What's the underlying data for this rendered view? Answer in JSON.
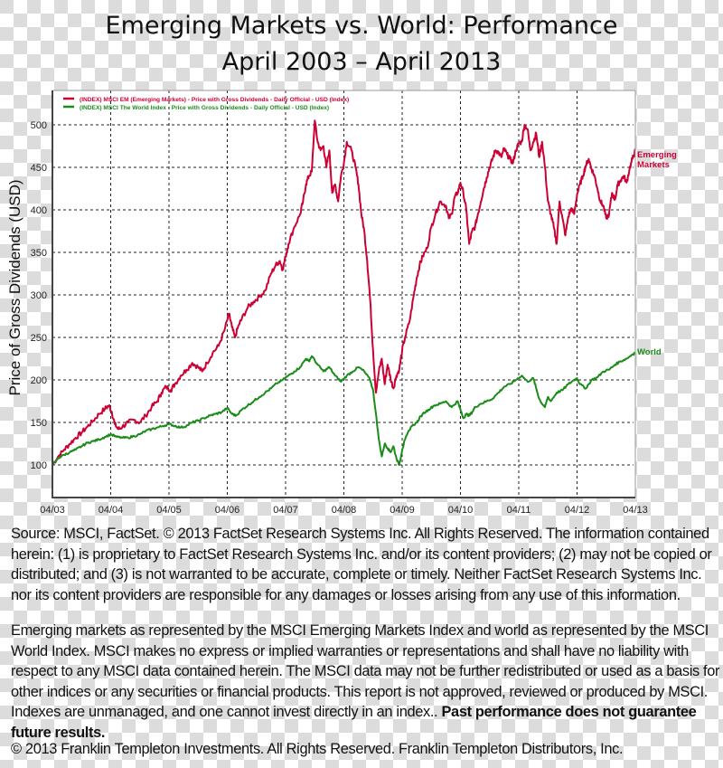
{
  "title_lines": [
    "Emerging Markets vs. World: Performance",
    "April 2003 – April 2013"
  ],
  "chart_data": {
    "type": "line",
    "title": "Emerging Markets vs. World: Performance April 2003 – April 2013",
    "xlabel": "",
    "ylabel": "Price of Gross Dividends (USD)",
    "xlim": [
      2003.25,
      2013.25
    ],
    "ylim": [
      60,
      540
    ],
    "x_ticks": [
      2003.25,
      2004.25,
      2005.25,
      2006.25,
      2007.25,
      2008.25,
      2009.25,
      2010.25,
      2011.25,
      2012.25,
      2013.25
    ],
    "x_tick_labels": [
      "04/03",
      "04/04",
      "04/05",
      "04/06",
      "04/07",
      "04/08",
      "04/09",
      "04/10",
      "04/11",
      "04/12",
      "04/13"
    ],
    "y_ticks": [
      100,
      150,
      200,
      250,
      300,
      350,
      400,
      450,
      500
    ],
    "y_tick_labels": [
      "100",
      "150",
      "200",
      "250",
      "300",
      "350",
      "400",
      "450",
      "500"
    ],
    "grid": true,
    "legend_position": "top-left",
    "series": [
      {
        "name": "(INDEX) MSCI EM (Emerging Markets) - Price with Gross Dividends - Daily Official - USD (Index)",
        "end_label": "Emerging Markets",
        "color": "#cc0033",
        "x": [
          2003.25,
          2003.35,
          2003.45,
          2003.55,
          2003.65,
          2003.75,
          2003.85,
          2003.95,
          2004.05,
          2004.15,
          2004.22,
          2004.27,
          2004.32,
          2004.38,
          2004.45,
          2004.55,
          2004.65,
          2004.75,
          2004.85,
          2004.95,
          2005.05,
          2005.12,
          2005.2,
          2005.28,
          2005.35,
          2005.45,
          2005.55,
          2005.65,
          2005.75,
          2005.82,
          2005.9,
          2006.0,
          2006.1,
          2006.2,
          2006.28,
          2006.33,
          2006.38,
          2006.45,
          2006.5,
          2006.6,
          2006.7,
          2006.8,
          2006.9,
          2007.0,
          2007.08,
          2007.15,
          2007.2,
          2007.25,
          2007.3,
          2007.4,
          2007.5,
          2007.55,
          2007.6,
          2007.65,
          2007.7,
          2007.75,
          2007.8,
          2007.85,
          2007.9,
          2007.95,
          2008.0,
          2008.05,
          2008.1,
          2008.15,
          2008.2,
          2008.25,
          2008.3,
          2008.38,
          2008.45,
          2008.5,
          2008.55,
          2008.6,
          2008.65,
          2008.7,
          2008.75,
          2008.8,
          2008.85,
          2008.9,
          2008.95,
          2009.0,
          2009.05,
          2009.1,
          2009.15,
          2009.2,
          2009.25,
          2009.3,
          2009.38,
          2009.45,
          2009.5,
          2009.55,
          2009.6,
          2009.68,
          2009.75,
          2009.82,
          2009.9,
          2010.0,
          2010.05,
          2010.1,
          2010.15,
          2010.2,
          2010.25,
          2010.3,
          2010.35,
          2010.4,
          2010.45,
          2010.5,
          2010.55,
          2010.6,
          2010.65,
          2010.7,
          2010.75,
          2010.8,
          2010.85,
          2010.9,
          2010.95,
          2011.0,
          2011.05,
          2011.1,
          2011.15,
          2011.2,
          2011.25,
          2011.3,
          2011.35,
          2011.4,
          2011.45,
          2011.5,
          2011.55,
          2011.6,
          2011.65,
          2011.7,
          2011.75,
          2011.8,
          2011.85,
          2011.9,
          2011.95,
          2012.0,
          2012.05,
          2012.1,
          2012.15,
          2012.2,
          2012.25,
          2012.3,
          2012.35,
          2012.4,
          2012.45,
          2012.5,
          2012.55,
          2012.6,
          2012.65,
          2012.7,
          2012.75,
          2012.8,
          2012.85,
          2012.9,
          2012.95,
          2013.0,
          2013.05,
          2013.1,
          2013.15,
          2013.2,
          2013.25
        ],
        "y": [
          100,
          110,
          118,
          125,
          132,
          138,
          145,
          152,
          160,
          166,
          170,
          162,
          148,
          142,
          145,
          150,
          153,
          150,
          158,
          168,
          175,
          185,
          192,
          188,
          195,
          205,
          212,
          220,
          215,
          210,
          220,
          232,
          240,
          258,
          278,
          262,
          250,
          265,
          272,
          285,
          292,
          298,
          305,
          325,
          335,
          340,
          330,
          345,
          360,
          380,
          395,
          410,
          430,
          440,
          445,
          505,
          480,
          470,
          475,
          450,
          470,
          420,
          430,
          410,
          440,
          455,
          480,
          470,
          450,
          430,
          395,
          375,
          340,
          295,
          235,
          185,
          210,
          225,
          195,
          218,
          202,
          190,
          205,
          212,
          235,
          250,
          270,
          300,
          320,
          335,
          345,
          355,
          380,
          395,
          410,
          405,
          390,
          395,
          415,
          420,
          432,
          420,
          400,
          360,
          375,
          380,
          395,
          410,
          425,
          438,
          450,
          460,
          470,
          468,
          462,
          472,
          465,
          460,
          455,
          470,
          478,
          480,
          500,
          495,
          470,
          480,
          490,
          462,
          480,
          450,
          410,
          395,
          380,
          360,
          410,
          390,
          370,
          392,
          402,
          395,
          418,
          430,
          440,
          452,
          460,
          448,
          440,
          425,
          410,
          405,
          390,
          395,
          420,
          412,
          430,
          435,
          440,
          432,
          448,
          460,
          470
        ]
      },
      {
        "name": "(INDEX) MSCI The World Index - Price with Gross Dividends - Daily Official - USD (Index)",
        "end_label": "World",
        "color": "#1a8c1a",
        "x": [
          2003.25,
          2003.35,
          2003.45,
          2003.55,
          2003.65,
          2003.75,
          2003.85,
          2003.95,
          2004.05,
          2004.15,
          2004.25,
          2004.35,
          2004.45,
          2004.55,
          2004.65,
          2004.75,
          2004.85,
          2004.95,
          2005.05,
          2005.15,
          2005.25,
          2005.35,
          2005.45,
          2005.55,
          2005.65,
          2005.75,
          2005.85,
          2005.95,
          2006.05,
          2006.15,
          2006.25,
          2006.33,
          2006.4,
          2006.5,
          2006.6,
          2006.7,
          2006.8,
          2006.9,
          2007.0,
          2007.1,
          2007.2,
          2007.3,
          2007.4,
          2007.5,
          2007.6,
          2007.65,
          2007.7,
          2007.8,
          2007.9,
          2008.0,
          2008.1,
          2008.2,
          2008.3,
          2008.4,
          2008.5,
          2008.6,
          2008.7,
          2008.75,
          2008.8,
          2008.85,
          2008.9,
          2008.95,
          2009.0,
          2009.05,
          2009.1,
          2009.15,
          2009.2,
          2009.25,
          2009.3,
          2009.4,
          2009.5,
          2009.6,
          2009.7,
          2009.8,
          2009.9,
          2010.0,
          2010.1,
          2010.2,
          2010.25,
          2010.3,
          2010.35,
          2010.4,
          2010.45,
          2010.5,
          2010.6,
          2010.7,
          2010.8,
          2010.9,
          2011.0,
          2011.1,
          2011.2,
          2011.3,
          2011.4,
          2011.5,
          2011.55,
          2011.6,
          2011.65,
          2011.7,
          2011.75,
          2011.8,
          2011.9,
          2012.0,
          2012.1,
          2012.2,
          2012.25,
          2012.3,
          2012.4,
          2012.5,
          2012.6,
          2012.7,
          2012.8,
          2012.9,
          2013.0,
          2013.1,
          2013.2,
          2013.25
        ],
        "y": [
          100,
          108,
          112,
          115,
          118,
          122,
          126,
          128,
          130,
          133,
          136,
          133,
          132,
          132,
          134,
          136,
          140,
          142,
          144,
          146,
          148,
          146,
          144,
          146,
          150,
          152,
          155,
          158,
          160,
          162,
          167,
          160,
          158,
          165,
          170,
          175,
          180,
          185,
          190,
          196,
          200,
          205,
          210,
          215,
          225,
          222,
          228,
          218,
          210,
          215,
          205,
          198,
          205,
          210,
          215,
          210,
          200,
          188,
          160,
          130,
          110,
          125,
          120,
          115,
          122,
          108,
          100,
          118,
          130,
          145,
          150,
          160,
          165,
          170,
          172,
          175,
          168,
          175,
          165,
          155,
          160,
          158,
          162,
          168,
          172,
          175,
          178,
          185,
          192,
          195,
          200,
          205,
          198,
          202,
          190,
          178,
          172,
          168,
          180,
          175,
          185,
          188,
          195,
          200,
          202,
          195,
          190,
          200,
          203,
          210,
          212,
          218,
          222,
          225,
          230,
          232
        ]
      }
    ]
  },
  "footer": {
    "source_text": "Source: MSCI, FactSet. © 2013 FactSet Research Systems Inc. All Rights Reserved. The information contained herein: (1) is proprietary to FactSet Research Systems Inc. and/or its content providers; (2) may not be copied or distributed; and (3) is not warranted to be accurate, complete or timely. Neither FactSet Research Systems Inc. nor its content providers are responsible for any damages or losses arising from any use of this information.",
    "disclaimer_text": "Emerging markets as represented by the MSCI Emerging Markets Index and world as represented by the MSCI World Index. MSCI makes no express or implied warranties or representations and shall have no liability with respect to any MSCI data contained herein. The MSCI data may not be further redistributed or used as a basis for other indices or any securities or financial products. This report is not approved, reviewed or produced by MSCI. Indexes are unmanaged, and one cannot invest directly in an index..",
    "disclaimer_bold": "Past performance does not guarantee future results.",
    "copyright_text": "© 2013 Franklin Templeton Investments. All Rights Reserved. Franklin Templeton Distributors, Inc."
  }
}
